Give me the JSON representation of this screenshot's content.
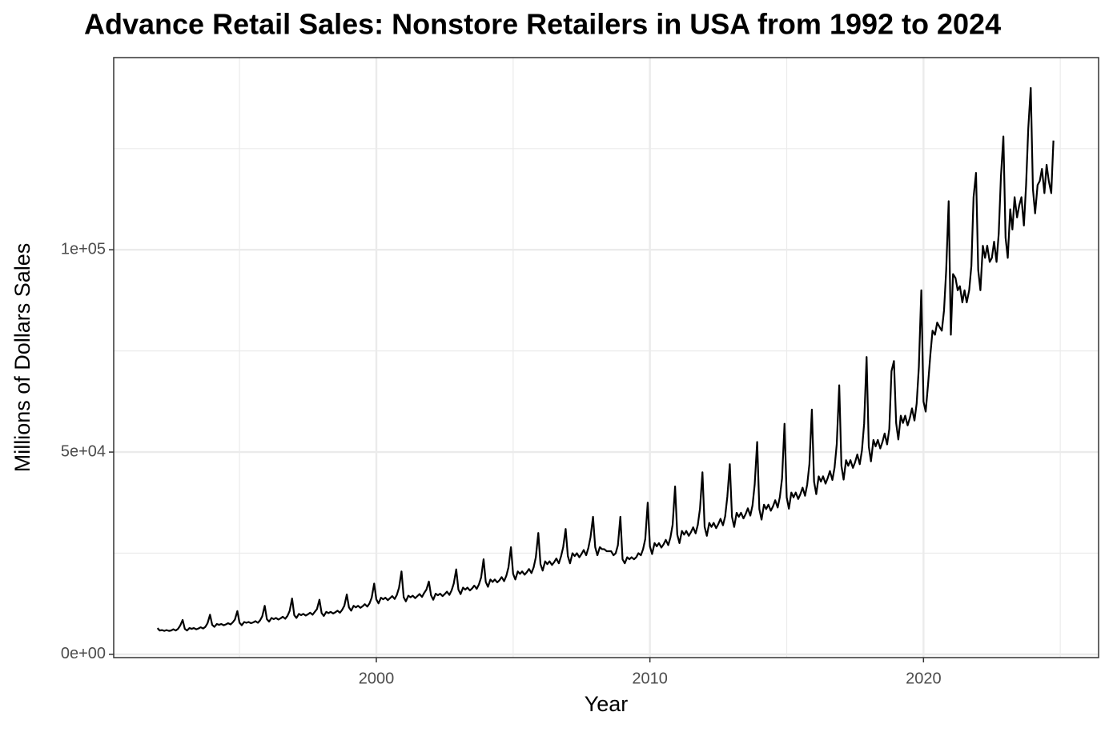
{
  "chart_data": {
    "type": "line",
    "title": "Advance Retail Sales: Nonstore Retailers in USA from 1992 to 2024",
    "x_label": "Year",
    "y_label": "Millions of Dollars Sales",
    "color": "#000000",
    "grid": true,
    "xlim": [
      1990.4,
      2026.4
    ],
    "xticks": [
      2000,
      2010,
      2020
    ],
    "xminorticks": [
      1995,
      2005,
      2015,
      2025
    ],
    "ylim": [
      -800,
      147500
    ],
    "yticks": [
      {
        "value": 0,
        "label": "0e+00"
      },
      {
        "value": 50000,
        "label": "5e+04"
      },
      {
        "value": 100000,
        "label": "1e+05"
      }
    ],
    "yminorticks": [
      25000,
      75000,
      125000
    ],
    "x": [
      1992,
      1992.08,
      1992.17,
      1992.25,
      1992.33,
      1992.42,
      1992.5,
      1992.58,
      1992.67,
      1992.75,
      1992.83,
      1992.92,
      1993,
      1993.08,
      1993.17,
      1993.25,
      1993.33,
      1993.42,
      1993.5,
      1993.58,
      1993.67,
      1993.75,
      1993.83,
      1993.92,
      1994,
      1994.08,
      1994.17,
      1994.25,
      1994.33,
      1994.42,
      1994.5,
      1994.58,
      1994.67,
      1994.75,
      1994.83,
      1994.92,
      1995,
      1995.08,
      1995.17,
      1995.25,
      1995.33,
      1995.42,
      1995.5,
      1995.58,
      1995.67,
      1995.75,
      1995.83,
      1995.92,
      1996,
      1996.08,
      1996.17,
      1996.25,
      1996.33,
      1996.42,
      1996.5,
      1996.58,
      1996.67,
      1996.75,
      1996.83,
      1996.92,
      1997,
      1997.08,
      1997.17,
      1997.25,
      1997.33,
      1997.42,
      1997.5,
      1997.58,
      1997.67,
      1997.75,
      1997.83,
      1997.92,
      1998,
      1998.08,
      1998.17,
      1998.25,
      1998.33,
      1998.42,
      1998.5,
      1998.58,
      1998.67,
      1998.75,
      1998.83,
      1998.92,
      1999,
      1999.08,
      1999.17,
      1999.25,
      1999.33,
      1999.42,
      1999.5,
      1999.58,
      1999.67,
      1999.75,
      1999.83,
      1999.92,
      2000,
      2000.08,
      2000.17,
      2000.25,
      2000.33,
      2000.42,
      2000.5,
      2000.58,
      2000.67,
      2000.75,
      2000.83,
      2000.92,
      2001,
      2001.08,
      2001.17,
      2001.25,
      2001.33,
      2001.42,
      2001.5,
      2001.58,
      2001.67,
      2001.75,
      2001.83,
      2001.92,
      2002,
      2002.08,
      2002.17,
      2002.25,
      2002.33,
      2002.42,
      2002.5,
      2002.58,
      2002.67,
      2002.75,
      2002.83,
      2002.92,
      2003,
      2003.08,
      2003.17,
      2003.25,
      2003.33,
      2003.42,
      2003.5,
      2003.58,
      2003.67,
      2003.75,
      2003.83,
      2003.92,
      2004,
      2004.08,
      2004.17,
      2004.25,
      2004.33,
      2004.42,
      2004.5,
      2004.58,
      2004.67,
      2004.75,
      2004.83,
      2004.92,
      2005,
      2005.08,
      2005.17,
      2005.25,
      2005.33,
      2005.42,
      2005.5,
      2005.58,
      2005.67,
      2005.75,
      2005.83,
      2005.92,
      2006,
      2006.08,
      2006.17,
      2006.25,
      2006.33,
      2006.42,
      2006.5,
      2006.58,
      2006.67,
      2006.75,
      2006.83,
      2006.92,
      2007,
      2007.08,
      2007.17,
      2007.25,
      2007.33,
      2007.42,
      2007.5,
      2007.58,
      2007.67,
      2007.75,
      2007.83,
      2007.92,
      2008,
      2008.08,
      2008.17,
      2008.25,
      2008.33,
      2008.42,
      2008.5,
      2008.58,
      2008.67,
      2008.75,
      2008.83,
      2008.92,
      2009,
      2009.08,
      2009.17,
      2009.25,
      2009.33,
      2009.42,
      2009.5,
      2009.58,
      2009.67,
      2009.75,
      2009.83,
      2009.92,
      2010,
      2010.08,
      2010.17,
      2010.25,
      2010.33,
      2010.42,
      2010.5,
      2010.58,
      2010.67,
      2010.75,
      2010.83,
      2010.92,
      2011,
      2011.08,
      2011.17,
      2011.25,
      2011.33,
      2011.42,
      2011.5,
      2011.58,
      2011.67,
      2011.75,
      2011.83,
      2011.92,
      2012,
      2012.08,
      2012.17,
      2012.25,
      2012.33,
      2012.42,
      2012.5,
      2012.58,
      2012.67,
      2012.75,
      2012.83,
      2012.92,
      2013,
      2013.08,
      2013.17,
      2013.25,
      2013.33,
      2013.42,
      2013.5,
      2013.58,
      2013.67,
      2013.75,
      2013.83,
      2013.92,
      2014,
      2014.08,
      2014.17,
      2014.25,
      2014.33,
      2014.42,
      2014.5,
      2014.58,
      2014.67,
      2014.75,
      2014.83,
      2014.92,
      2015,
      2015.08,
      2015.17,
      2015.25,
      2015.33,
      2015.42,
      2015.5,
      2015.58,
      2015.67,
      2015.75,
      2015.83,
      2015.92,
      2016,
      2016.08,
      2016.17,
      2016.25,
      2016.33,
      2016.42,
      2016.5,
      2016.58,
      2016.67,
      2016.75,
      2016.83,
      2016.92,
      2017,
      2017.08,
      2017.17,
      2017.25,
      2017.33,
      2017.42,
      2017.5,
      2017.58,
      2017.67,
      2017.75,
      2017.83,
      2017.92,
      2018,
      2018.08,
      2018.17,
      2018.25,
      2018.33,
      2018.42,
      2018.5,
      2018.58,
      2018.67,
      2018.75,
      2018.83,
      2018.92,
      2019,
      2019.08,
      2019.17,
      2019.25,
      2019.33,
      2019.42,
      2019.5,
      2019.58,
      2019.67,
      2019.75,
      2019.83,
      2019.92,
      2020,
      2020.08,
      2020.17,
      2020.25,
      2020.33,
      2020.42,
      2020.5,
      2020.58,
      2020.67,
      2020.75,
      2020.83,
      2020.92,
      2021,
      2021.08,
      2021.17,
      2021.25,
      2021.33,
      2021.42,
      2021.5,
      2021.58,
      2021.67,
      2021.75,
      2021.83,
      2021.92,
      2022,
      2022.08,
      2022.17,
      2022.25,
      2022.33,
      2022.42,
      2022.5,
      2022.58,
      2022.67,
      2022.75,
      2022.83,
      2022.92,
      2023,
      2023.08,
      2023.17,
      2023.25,
      2023.33,
      2023.42,
      2023.5,
      2023.58,
      2023.67,
      2023.75,
      2023.83,
      2023.92,
      2024,
      2024.08,
      2024.17,
      2024.25,
      2024.33,
      2024.42,
      2024.5,
      2024.58,
      2024.67,
      2024.75
    ],
    "values": [
      6500,
      5900,
      6000,
      5800,
      6000,
      5800,
      5900,
      6200,
      5900,
      6300,
      7100,
      8500,
      6300,
      5900,
      6500,
      6300,
      6500,
      6200,
      6400,
      6700,
      6400,
      6800,
      7700,
      9800,
      7300,
      6800,
      7500,
      7300,
      7500,
      7200,
      7400,
      7700,
      7400,
      7900,
      8600,
      10700,
      7800,
      7200,
      8000,
      7800,
      8000,
      7700,
      7900,
      8200,
      7800,
      8400,
      9400,
      12000,
      8700,
      8100,
      9000,
      8700,
      9000,
      8600,
      8900,
      9300,
      8800,
      9500,
      10700,
      13800,
      9700,
      9000,
      10000,
      9700,
      10000,
      9600,
      9900,
      10300,
      9800,
      10500,
      11200,
      13500,
      10200,
      9500,
      10500,
      10200,
      10500,
      10100,
      10400,
      10800,
      10300,
      11000,
      12000,
      14800,
      11600,
      10800,
      12000,
      11600,
      12000,
      11500,
      11900,
      12400,
      11800,
      12600,
      14000,
      17500,
      13600,
      12600,
      14000,
      13600,
      14000,
      13400,
      13900,
      14400,
      13700,
      14700,
      16500,
      20500,
      14100,
      13100,
      14500,
      14100,
      14500,
      13900,
      14400,
      14900,
      14200,
      15200,
      16000,
      18000,
      14600,
      13500,
      15000,
      14600,
      15000,
      14400,
      14900,
      15500,
      14700,
      15800,
      17500,
      21000,
      16000,
      14900,
      16500,
      16000,
      16500,
      15800,
      16300,
      17000,
      16200,
      17300,
      19000,
      23500,
      17900,
      16700,
      18500,
      17900,
      18500,
      17800,
      18300,
      19100,
      18100,
      19400,
      21500,
      26500,
      19900,
      18500,
      20500,
      19900,
      20500,
      19700,
      20300,
      21100,
      20100,
      21500,
      24000,
      30000,
      22300,
      20700,
      23000,
      22300,
      23000,
      22100,
      22800,
      23700,
      22500,
      24200,
      26500,
      31000,
      24300,
      22500,
      25000,
      24300,
      25000,
      24000,
      24800,
      25800,
      24500,
      26300,
      29000,
      34000,
      26500,
      24500,
      26500,
      26000,
      26000,
      25500,
      25500,
      25500,
      24500,
      25000,
      27000,
      34000,
      23500,
      22500,
      24000,
      23500,
      24000,
      23500,
      24000,
      25000,
      24500,
      26000,
      28500,
      37500,
      26700,
      24800,
      27500,
      26700,
      27500,
      26400,
      27200,
      28300,
      27000,
      28900,
      32000,
      41500,
      29600,
      27500,
      30500,
      29600,
      30500,
      29300,
      30200,
      31400,
      29900,
      32000,
      36000,
      45000,
      31500,
      29300,
      32500,
      31500,
      32500,
      31200,
      32200,
      33500,
      31900,
      34100,
      39000,
      47000,
      34000,
      31500,
      35000,
      34000,
      35000,
      33600,
      34700,
      36100,
      34300,
      36800,
      42000,
      52500,
      35900,
      33300,
      37000,
      35900,
      37000,
      35500,
      36600,
      38100,
      36300,
      38900,
      43500,
      57000,
      38800,
      36000,
      40000,
      38800,
      40000,
      38400,
      39600,
      41200,
      39200,
      42000,
      47000,
      60500,
      42700,
      39600,
      44000,
      42700,
      44000,
      42200,
      43600,
      45300,
      43100,
      46200,
      52000,
      66500,
      46600,
      43200,
      48000,
      46600,
      48000,
      46100,
      47500,
      49400,
      47000,
      50400,
      57000,
      73500,
      51400,
      47700,
      53000,
      51400,
      53000,
      50900,
      52500,
      54600,
      51900,
      55700,
      70000,
      72500,
      57200,
      53100,
      59000,
      57200,
      59000,
      56600,
      58400,
      60800,
      57800,
      62000,
      71000,
      90000,
      62500,
      60000,
      67000,
      74000,
      80000,
      79000,
      82000,
      81000,
      80000,
      85000,
      95000,
      112000,
      79000,
      94000,
      93000,
      90000,
      91000,
      87000,
      90000,
      87000,
      90000,
      96000,
      113000,
      119000,
      95000,
      90000,
      101000,
      98000,
      101000,
      97000,
      98000,
      102000,
      97000,
      104000,
      118000,
      128000,
      103000,
      98000,
      110000,
      105000,
      113000,
      108000,
      111000,
      113000,
      106000,
      116000,
      130000,
      140000,
      115000,
      109000,
      116000,
      117000,
      120000,
      114000,
      121000,
      117000,
      114000,
      127000
    ]
  }
}
